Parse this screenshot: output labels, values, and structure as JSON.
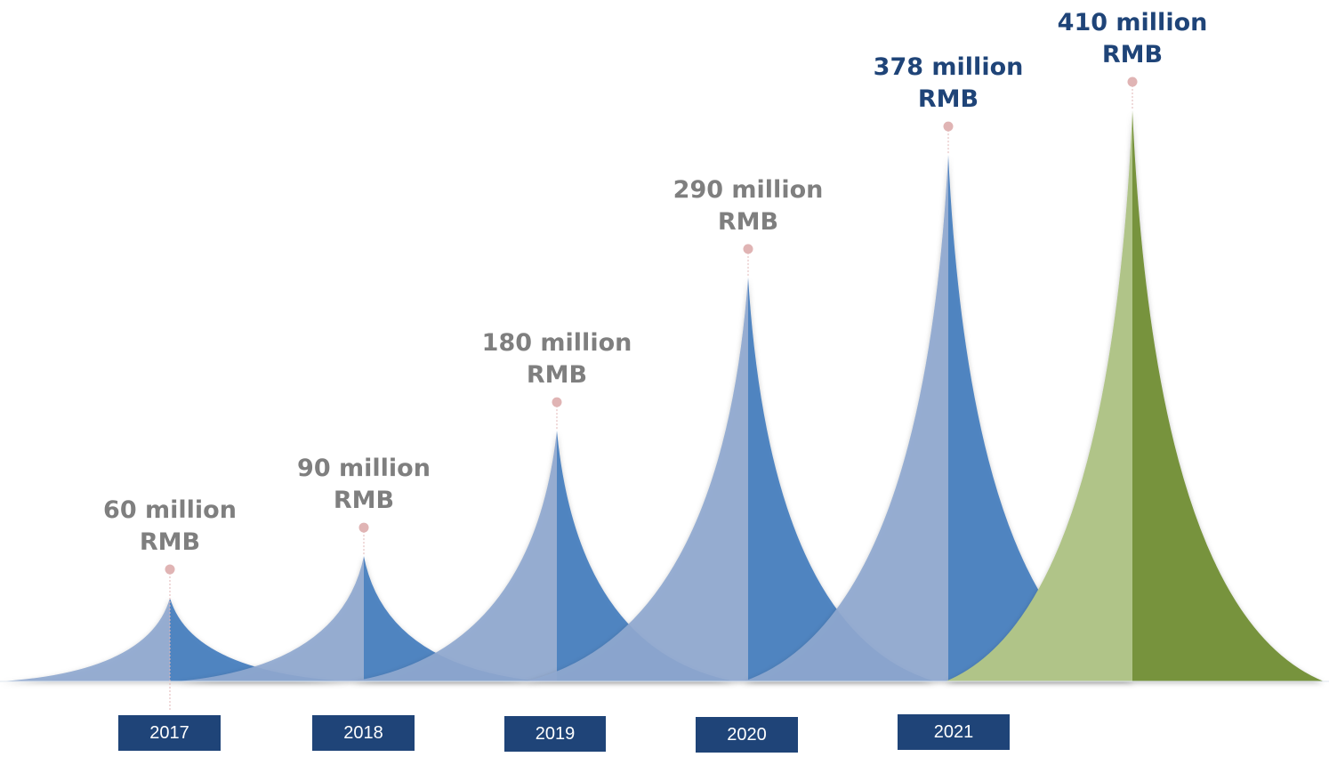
{
  "chart_data": {
    "type": "area",
    "categories": [
      "2017",
      "2018",
      "2019",
      "2020",
      "2021",
      ""
    ],
    "values": [
      60,
      90,
      180,
      290,
      378,
      410
    ],
    "labels": [
      [
        "60 million",
        "RMB"
      ],
      [
        "90 million",
        "RMB"
      ],
      [
        "180 million",
        "RMB"
      ],
      [
        "290 million",
        "RMB"
      ],
      [
        "378 million",
        "RMB"
      ],
      [
        "410 million",
        "RMB"
      ]
    ],
    "unit": "million RMB",
    "title": "",
    "xlabel": "",
    "ylabel": "",
    "ylim": [
      0,
      410
    ],
    "grid": false,
    "legend": "none",
    "colors": {
      "blue_light": "#8fa8cf",
      "blue_dark": "#4a7fbf",
      "green_light": "#b0c488",
      "green_dark": "#77933c",
      "label_gray": "#7f7f7f",
      "label_blue": "#1f4478",
      "year_box": "#1f4478",
      "marker": "#e0b4b4"
    }
  }
}
